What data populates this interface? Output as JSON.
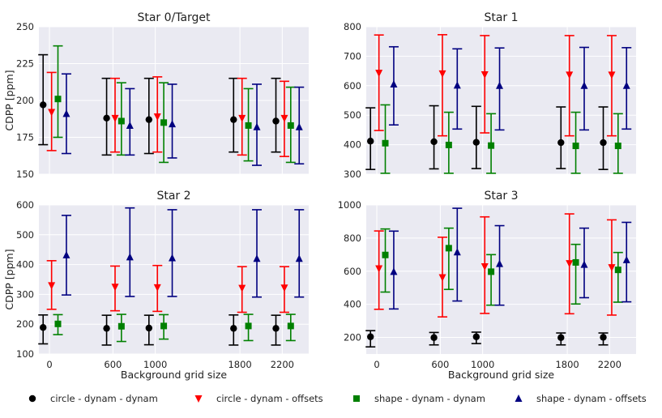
{
  "chart_data": {
    "type": "scatter",
    "xlabel": "Background grid size",
    "ylabel": "CDPP [ppm]",
    "x_ticks": [
      0,
      600,
      1000,
      1800,
      2200
    ],
    "xlim": [
      -100,
      2450
    ],
    "offsets": [
      -60,
      20,
      80,
      160
    ],
    "series": [
      {
        "name": "circle - dynam - dynam",
        "color": "#000000",
        "marker": "circle"
      },
      {
        "name": "circle - dynam - offsets",
        "color": "#ff0000",
        "marker": "triangle-down"
      },
      {
        "name": "shape - dynam - dynam",
        "color": "#008000",
        "marker": "square"
      },
      {
        "name": "shape - dynam - offsets",
        "color": "#000080",
        "marker": "triangle-up"
      }
    ],
    "panels": [
      {
        "title": "Star 0/Target",
        "ylim": [
          150,
          250
        ],
        "yticks": [
          150,
          175,
          200,
          225,
          250
        ],
        "show_xlabel": false,
        "show_ylabel": true,
        "data": [
          [
            [
              197,
              170,
              231
            ],
            [
              188,
              163,
              215
            ],
            [
              187,
              164,
              215
            ],
            [
              187,
              165,
              215
            ],
            [
              186,
              165,
              215
            ]
          ],
          [
            [
              192,
              166,
              219
            ],
            [
              188,
              165,
              215
            ],
            [
              189,
              165,
              216
            ],
            [
              188,
              163,
              215
            ],
            [
              188,
              162,
              213
            ]
          ],
          [
            [
              201,
              175,
              237
            ],
            [
              186,
              163,
              212
            ],
            [
              185,
              158,
              212
            ],
            [
              183,
              159,
              208
            ],
            [
              183,
              158,
              209
            ]
          ],
          [
            [
              191,
              164,
              218
            ],
            [
              183,
              163,
              208
            ],
            [
              184,
              161,
              211
            ],
            [
              182,
              156,
              211
            ],
            [
              182,
              157,
              209
            ]
          ]
        ]
      },
      {
        "title": "Star 1",
        "ylim": [
          300,
          800
        ],
        "yticks": [
          300,
          400,
          500,
          600,
          700,
          800
        ],
        "show_xlabel": false,
        "show_ylabel": false,
        "data": [
          [
            [
              412,
              316,
              525
            ],
            [
              410,
              318,
              532
            ],
            [
              408,
              319,
              530
            ],
            [
              407,
              319,
              528
            ],
            [
              407,
              316,
              528
            ]
          ],
          [
            [
              643,
              448,
              772
            ],
            [
              641,
              430,
              773
            ],
            [
              638,
              440,
              770
            ],
            [
              637,
              430,
              770
            ],
            [
              637,
              430,
              770
            ]
          ],
          [
            [
              405,
              303,
              535
            ],
            [
              399,
              303,
              510
            ],
            [
              397,
              303,
              505
            ],
            [
              396,
              303,
              510
            ],
            [
              396,
              303,
              505
            ]
          ],
          [
            [
              605,
              467,
              732
            ],
            [
              601,
              453,
              725
            ],
            [
              600,
              450,
              728
            ],
            [
              600,
              450,
              730
            ],
            [
              600,
              453,
              729
            ]
          ]
        ]
      },
      {
        "title": "Star 2",
        "ylim": [
          100,
          600
        ],
        "yticks": [
          100,
          200,
          300,
          400,
          500,
          600
        ],
        "show_xlabel": true,
        "show_ylabel": true,
        "data": [
          [
            [
              189,
              134,
              231
            ],
            [
              186,
              130,
              230
            ],
            [
              187,
              131,
              230
            ],
            [
              186,
              130,
              231
            ],
            [
              186,
              130,
              230
            ]
          ],
          [
            [
              330,
              250,
              413
            ],
            [
              325,
              245,
              395
            ],
            [
              323,
              243,
              397
            ],
            [
              321,
              240,
              393
            ],
            [
              322,
              240,
              393
            ]
          ],
          [
            [
              201,
              165,
              232
            ],
            [
              193,
              142,
              233
            ],
            [
              194,
              150,
              232
            ],
            [
              194,
              145,
              233
            ],
            [
              194,
              145,
              233
            ]
          ],
          [
            [
              432,
              298,
              565
            ],
            [
              425,
              293,
              590
            ],
            [
              422,
              293,
              584
            ],
            [
              420,
              291,
              584
            ],
            [
              420,
              291,
              584
            ]
          ]
        ]
      },
      {
        "title": "Star 3",
        "ylim": [
          100,
          1000
        ],
        "yticks": [
          200,
          400,
          600,
          800,
          1000
        ],
        "show_xlabel": true,
        "show_ylabel": false,
        "data": [
          [
            [
              204,
              143,
              241
            ],
            [
              199,
              155,
              230
            ],
            [
              204,
              163,
              232
            ],
            [
              199,
              155,
              227
            ],
            [
              201,
              155,
              227
            ]
          ],
          [
            [
              616,
              370,
              843
            ],
            [
              562,
              324,
              805
            ],
            [
              628,
              345,
              928
            ],
            [
              647,
              343,
              946
            ],
            [
              623,
              335,
              910
            ]
          ],
          [
            [
              698,
              474,
              855
            ],
            [
              739,
              490,
              860
            ],
            [
              597,
              395,
              700
            ],
            [
              653,
              402,
              762
            ],
            [
              608,
              413,
              713
            ]
          ],
          [
            [
              597,
              372,
              842
            ],
            [
              715,
              420,
              980
            ],
            [
              645,
              395,
              875
            ],
            [
              640,
              440,
              860
            ],
            [
              668,
              415,
              895
            ]
          ]
        ]
      }
    ]
  }
}
